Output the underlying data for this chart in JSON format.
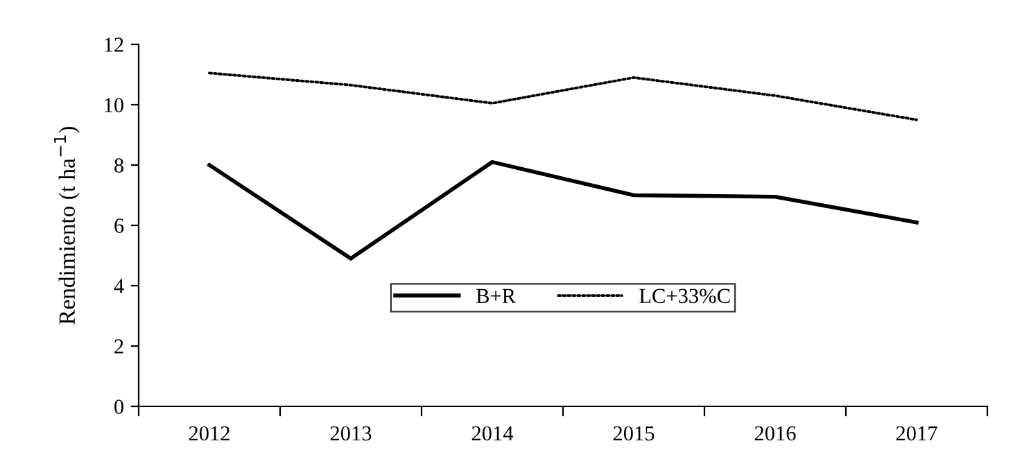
{
  "chart_data": {
    "type": "line",
    "ylabel": "Rendimiento (t ha$^{−1}$)",
    "categories": [
      "2012",
      "2013",
      "2014",
      "2015",
      "2016",
      "2017"
    ],
    "series": [
      {
        "name": "B+R",
        "color": "#000000",
        "line_style": "solid",
        "values": [
          8.0,
          4.9,
          8.1,
          7.0,
          6.95,
          6.1
        ]
      },
      {
        "name": "LC+33%C",
        "color": "#000000",
        "line_style": "dotted",
        "values": [
          11.05,
          10.65,
          10.05,
          10.9,
          10.3,
          9.5
        ]
      }
    ],
    "ylim": [
      0,
      12
    ],
    "yticks": [
      0,
      2,
      4,
      6,
      8,
      10,
      12
    ],
    "grid": false,
    "legend": "center",
    "marker": "none"
  }
}
